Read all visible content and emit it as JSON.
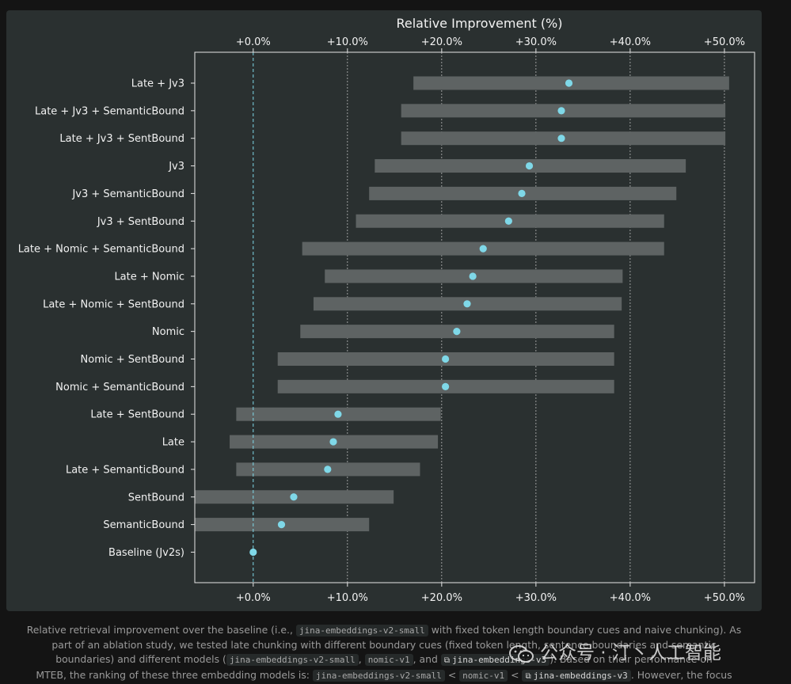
{
  "chart_data": {
    "type": "range_dot",
    "title": "Relative Improvement (%)",
    "xlim": [
      -6.2,
      53.2
    ],
    "x_ticks": [
      0,
      10,
      20,
      30,
      40,
      50
    ],
    "x_tick_labels": [
      "+0.0%",
      "+10.0%",
      "+20.0%",
      "+30.0%",
      "+40.0%",
      "+50.0%"
    ],
    "grid": true,
    "rows": [
      {
        "label": "Late + Jv3",
        "low": 17.0,
        "high": 50.5,
        "value": 33.5
      },
      {
        "label": "Late + Jv3 + SemanticBound",
        "low": 15.7,
        "high": 50.1,
        "value": 32.7
      },
      {
        "label": "Late + Jv3 + SentBound",
        "low": 15.7,
        "high": 50.1,
        "value": 32.7
      },
      {
        "label": "Jv3",
        "low": 12.9,
        "high": 45.9,
        "value": 29.3
      },
      {
        "label": "Jv3 + SemanticBound",
        "low": 12.3,
        "high": 44.9,
        "value": 28.5
      },
      {
        "label": "Jv3 + SentBound",
        "low": 10.9,
        "high": 43.6,
        "value": 27.1
      },
      {
        "label": "Late + Nomic + SemanticBound",
        "low": 5.2,
        "high": 43.6,
        "value": 24.4
      },
      {
        "label": "Late + Nomic",
        "low": 7.6,
        "high": 39.2,
        "value": 23.3
      },
      {
        "label": "Late + Nomic + SentBound",
        "low": 6.4,
        "high": 39.1,
        "value": 22.7
      },
      {
        "label": "Nomic",
        "low": 5.0,
        "high": 38.3,
        "value": 21.6
      },
      {
        "label": "Nomic + SentBound",
        "low": 2.6,
        "high": 38.3,
        "value": 20.4
      },
      {
        "label": "Nomic + SemanticBound",
        "low": 2.6,
        "high": 38.3,
        "value": 20.4
      },
      {
        "label": "Late + SentBound",
        "low": -1.8,
        "high": 19.9,
        "value": 9.0
      },
      {
        "label": "Late",
        "low": -2.5,
        "high": 19.6,
        "value": 8.5
      },
      {
        "label": "Late + SemanticBound",
        "low": -1.8,
        "high": 17.7,
        "value": 7.9
      },
      {
        "label": "SentBound",
        "low": -6.2,
        "high": 14.9,
        "value": 4.3
      },
      {
        "label": "SemanticBound",
        "low": -6.2,
        "high": 12.3,
        "value": 3.0
      },
      {
        "label": "Baseline (Jv2s)",
        "low": null,
        "high": null,
        "value": 0.0
      }
    ]
  },
  "caption": {
    "l1a": "Relative retrieval improvement over the baseline (i.e.,",
    "l1code": "jina-embeddings-v2-small",
    "l1b": "with fixed token length boundary cues and naive chunking). As",
    "l2": "part of an ablation study, we tested late chunking with different boundary cues (fixed token length, sentence boundaries and semantic",
    "l3a": "boundaries) and different models (",
    "l3code1": "jina-embeddings-v2-small",
    "l3sep": ",",
    "l3code2": "nomic-v1",
    "l3and": ", and",
    "l3link": "jina-embeddings-v3",
    "l3b": "). Based on their performance on",
    "l4a": "MTEB, the ranking of these three embedding models is:",
    "l4code1": "jina-embeddings-v2-small",
    "lt1": "<",
    "l4code2": "nomic-v1",
    "lt2": "<",
    "l4link": "jina-embeddings-v3",
    "l4b": ". However, the focus"
  },
  "watermark": {
    "text": "公众号 · 汀丶人工智能"
  }
}
